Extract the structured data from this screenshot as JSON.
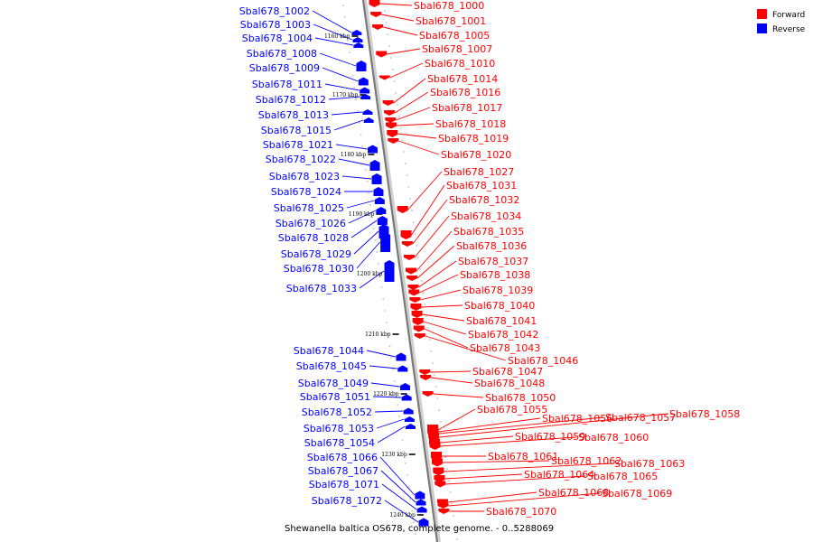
{
  "legend": {
    "forward": {
      "label": "Forward",
      "color": "#ff0000"
    },
    "reverse": {
      "label": "Reverse",
      "color": "#0000ff"
    }
  },
  "caption": "Shewanella baltica OS678, complete genome. - 0..5288069",
  "ticks": [
    "1160 kbp",
    "1170 kbp",
    "1180 kbp",
    "1190 kbp",
    "1200 kbp",
    "1210 kbp",
    "1220 kbp",
    "1230 kbp",
    "1240 kbp"
  ],
  "reverse_genes": [
    "Sbal678_1002",
    "Sbal678_1003",
    "Sbal678_1004",
    "Sbal678_1008",
    "Sbal678_1009",
    "Sbal678_1011",
    "Sbal678_1012",
    "Sbal678_1013",
    "Sbal678_1015",
    "Sbal678_1021",
    "Sbal678_1022",
    "Sbal678_1023",
    "Sbal678_1024",
    "Sbal678_1025",
    "Sbal678_1026",
    "Sbal678_1028",
    "Sbal678_1029",
    "Sbal678_1030",
    "Sbal678_1033",
    "Sbal678_1044",
    "Sbal678_1045",
    "Sbal678_1049",
    "Sbal678_1051",
    "Sbal678_1052",
    "Sbal678_1053",
    "Sbal678_1054",
    "Sbal678_1066",
    "Sbal678_1067",
    "Sbal678_1071",
    "Sbal678_1072"
  ],
  "forward_genes": [
    "Sbal678_1000",
    "Sbal678_1001",
    "Sbal678_1005",
    "Sbal678_1007",
    "Sbal678_1010",
    "Sbal678_1014",
    "Sbal678_1016",
    "Sbal678_1017",
    "Sbal678_1018",
    "Sbal678_1019",
    "Sbal678_1020",
    "Sbal678_1027",
    "Sbal678_1031",
    "Sbal678_1032",
    "Sbal678_1034",
    "Sbal678_1035",
    "Sbal678_1036",
    "Sbal678_1037",
    "Sbal678_1038",
    "Sbal678_1039",
    "Sbal678_1040",
    "Sbal678_1041",
    "Sbal678_1042",
    "Sbal678_1043",
    "Sbal678_1046",
    "Sbal678_1047",
    "Sbal678_1048",
    "Sbal678_1050",
    "Sbal678_1055",
    "Sbal678_1056",
    "Sbal678_1057",
    "Sbal678_1058",
    "Sbal678_1059",
    "Sbal678_1060",
    "Sbal678_1061",
    "Sbal678_1062",
    "Sbal678_1063",
    "Sbal678_1064",
    "Sbal678_1065",
    "Sbal678_1068",
    "Sbal678_1069",
    "Sbal678_1070"
  ]
}
